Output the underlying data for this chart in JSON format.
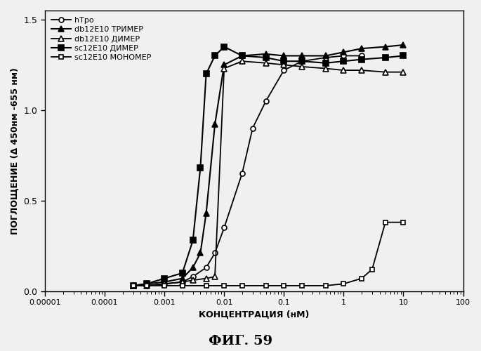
{
  "title": "ФИГ. 59",
  "xlabel": "КОНЦЕНТРАЦИЯ (нМ)",
  "ylabel": "ПОГЛОЩЕНИЕ (Δ 450нм -655 нм)",
  "xlim": [
    1e-05,
    100
  ],
  "ylim": [
    0.0,
    1.55
  ],
  "yticks": [
    0.0,
    0.5,
    1.0,
    1.5
  ],
  "xtick_labels": [
    "0.00001",
    "0.0001",
    "0.001",
    "0.01",
    "0.1",
    "1",
    "10",
    "100"
  ],
  "series": [
    {
      "label": "hTpo",
      "marker": "o",
      "fillstyle": "none",
      "color": "black",
      "linewidth": 1.3,
      "markersize": 5,
      "x": [
        0.0003,
        0.0005,
        0.001,
        0.002,
        0.003,
        0.005,
        0.007,
        0.01,
        0.02,
        0.03,
        0.05,
        0.1,
        0.2,
        0.5,
        1.0,
        2.0
      ],
      "y": [
        0.03,
        0.03,
        0.04,
        0.05,
        0.08,
        0.13,
        0.21,
        0.35,
        0.65,
        0.9,
        1.05,
        1.22,
        1.27,
        1.29,
        1.3,
        1.3
      ]
    },
    {
      "label": "db12E10 ТРИМЕР",
      "marker": "^",
      "fillstyle": "full",
      "color": "black",
      "linewidth": 1.5,
      "markersize": 6,
      "x": [
        0.0003,
        0.0005,
        0.001,
        0.002,
        0.003,
        0.004,
        0.005,
        0.007,
        0.01,
        0.02,
        0.05,
        0.1,
        0.2,
        0.5,
        1.0,
        2.0,
        5.0,
        10.0
      ],
      "y": [
        0.03,
        0.04,
        0.05,
        0.07,
        0.13,
        0.21,
        0.43,
        0.92,
        1.25,
        1.3,
        1.31,
        1.3,
        1.3,
        1.3,
        1.32,
        1.34,
        1.35,
        1.36
      ]
    },
    {
      "label": "db12E10 ДИМЕР",
      "marker": "^",
      "fillstyle": "none",
      "color": "black",
      "linewidth": 1.3,
      "markersize": 6,
      "x": [
        0.0003,
        0.0005,
        0.001,
        0.002,
        0.003,
        0.005,
        0.007,
        0.01,
        0.02,
        0.05,
        0.1,
        0.2,
        0.5,
        1.0,
        2.0,
        5.0,
        10.0
      ],
      "y": [
        0.03,
        0.03,
        0.04,
        0.05,
        0.06,
        0.07,
        0.08,
        1.23,
        1.27,
        1.26,
        1.25,
        1.24,
        1.23,
        1.22,
        1.22,
        1.21,
        1.21
      ]
    },
    {
      "label": "sc12E10 ДИМЕР",
      "marker": "s",
      "fillstyle": "full",
      "color": "black",
      "linewidth": 1.5,
      "markersize": 6,
      "x": [
        0.0003,
        0.0005,
        0.001,
        0.002,
        0.003,
        0.004,
        0.005,
        0.007,
        0.01,
        0.02,
        0.05,
        0.1,
        0.2,
        0.5,
        1.0,
        2.0,
        5.0,
        10.0
      ],
      "y": [
        0.03,
        0.04,
        0.07,
        0.1,
        0.28,
        0.68,
        1.2,
        1.3,
        1.35,
        1.3,
        1.29,
        1.27,
        1.27,
        1.26,
        1.27,
        1.28,
        1.29,
        1.3
      ]
    },
    {
      "label": "sc12E10 МОНОМЕР",
      "marker": "s",
      "fillstyle": "none",
      "color": "black",
      "linewidth": 1.3,
      "markersize": 5,
      "x": [
        0.0003,
        0.0005,
        0.001,
        0.002,
        0.005,
        0.01,
        0.02,
        0.05,
        0.1,
        0.2,
        0.5,
        1.0,
        2.0,
        3.0,
        5.0,
        10.0
      ],
      "y": [
        0.03,
        0.03,
        0.03,
        0.03,
        0.03,
        0.03,
        0.03,
        0.03,
        0.03,
        0.03,
        0.03,
        0.04,
        0.07,
        0.12,
        0.38,
        0.38
      ]
    }
  ],
  "legend_fontsize": 8,
  "background_color": "#f0f0f0",
  "plot_bg": "#f0f0f0"
}
